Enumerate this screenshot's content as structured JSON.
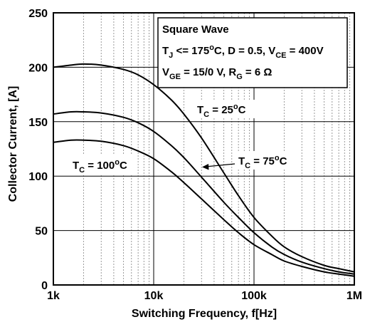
{
  "chart_data": {
    "type": "line",
    "xlabel": "Switching Frequency, f[Hz]",
    "ylabel": "Collector Current, [A]",
    "xscale": "log",
    "xlim": [
      1000,
      1000000
    ],
    "ylim": [
      0,
      250
    ],
    "grid": true,
    "x_ticks": [
      {
        "value": 1000,
        "label": "1k"
      },
      {
        "value": 10000,
        "label": "10k"
      },
      {
        "value": 100000,
        "label": "100k"
      },
      {
        "value": 1000000,
        "label": "1M"
      }
    ],
    "y_ticks": [
      0,
      50,
      100,
      150,
      200,
      250
    ],
    "conditions_box": {
      "line1": "Square Wave",
      "line2": {
        "t": "T",
        "t_sub": "J",
        "a": " <= 175",
        "a_sup": "o",
        "b": "C, D = 0.5, V",
        "b_sub": "CE",
        "c": " = 400V"
      },
      "line3": {
        "v": "V",
        "v_sub": "GE",
        "a": " = 15/0 V, R",
        "a_sub": "G",
        "b": " = 6 Ω"
      },
      "position": "top-right"
    },
    "series": [
      {
        "label": {
          "t": "T",
          "t_sub": "C",
          "a": " = 25",
          "a_sup": "o",
          "b": "C"
        },
        "x": [
          1000,
          1500,
          2000,
          3000,
          5000,
          7000,
          10000,
          15000,
          20000,
          30000,
          50000,
          70000,
          100000,
          150000,
          200000,
          300000,
          500000,
          700000,
          1000000
        ],
        "y": [
          200,
          202,
          203,
          202,
          198,
          193,
          184,
          170,
          157,
          135,
          103,
          82,
          62,
          45,
          35,
          26,
          18,
          15,
          12
        ]
      },
      {
        "label": {
          "t": "T",
          "t_sub": "C",
          "a": " = 75",
          "a_sup": "o",
          "b": "C"
        },
        "x": [
          1000,
          1500,
          2000,
          3000,
          5000,
          7000,
          10000,
          15000,
          20000,
          30000,
          50000,
          70000,
          100000,
          150000,
          200000,
          300000,
          500000,
          700000,
          1000000
        ],
        "y": [
          157,
          159,
          159,
          158,
          154,
          149,
          141,
          128,
          117,
          99,
          76,
          62,
          48,
          35,
          28,
          21,
          15,
          12,
          10
        ]
      },
      {
        "label": {
          "t": "T",
          "t_sub": "C",
          "a": " = 100",
          "a_sup": "o",
          "b": "C"
        },
        "x": [
          1000,
          1500,
          2000,
          3000,
          5000,
          7000,
          10000,
          15000,
          20000,
          30000,
          50000,
          70000,
          100000,
          150000,
          200000,
          300000,
          500000,
          700000,
          1000000
        ],
        "y": [
          131,
          133,
          133,
          132,
          128,
          123,
          116,
          104,
          94,
          79,
          60,
          48,
          37,
          28,
          22,
          17,
          12,
          10,
          8
        ]
      }
    ]
  },
  "colors": {
    "line": "#000000",
    "grid": "#9a9a9a",
    "frame": "#000000",
    "background": "#ffffff"
  }
}
